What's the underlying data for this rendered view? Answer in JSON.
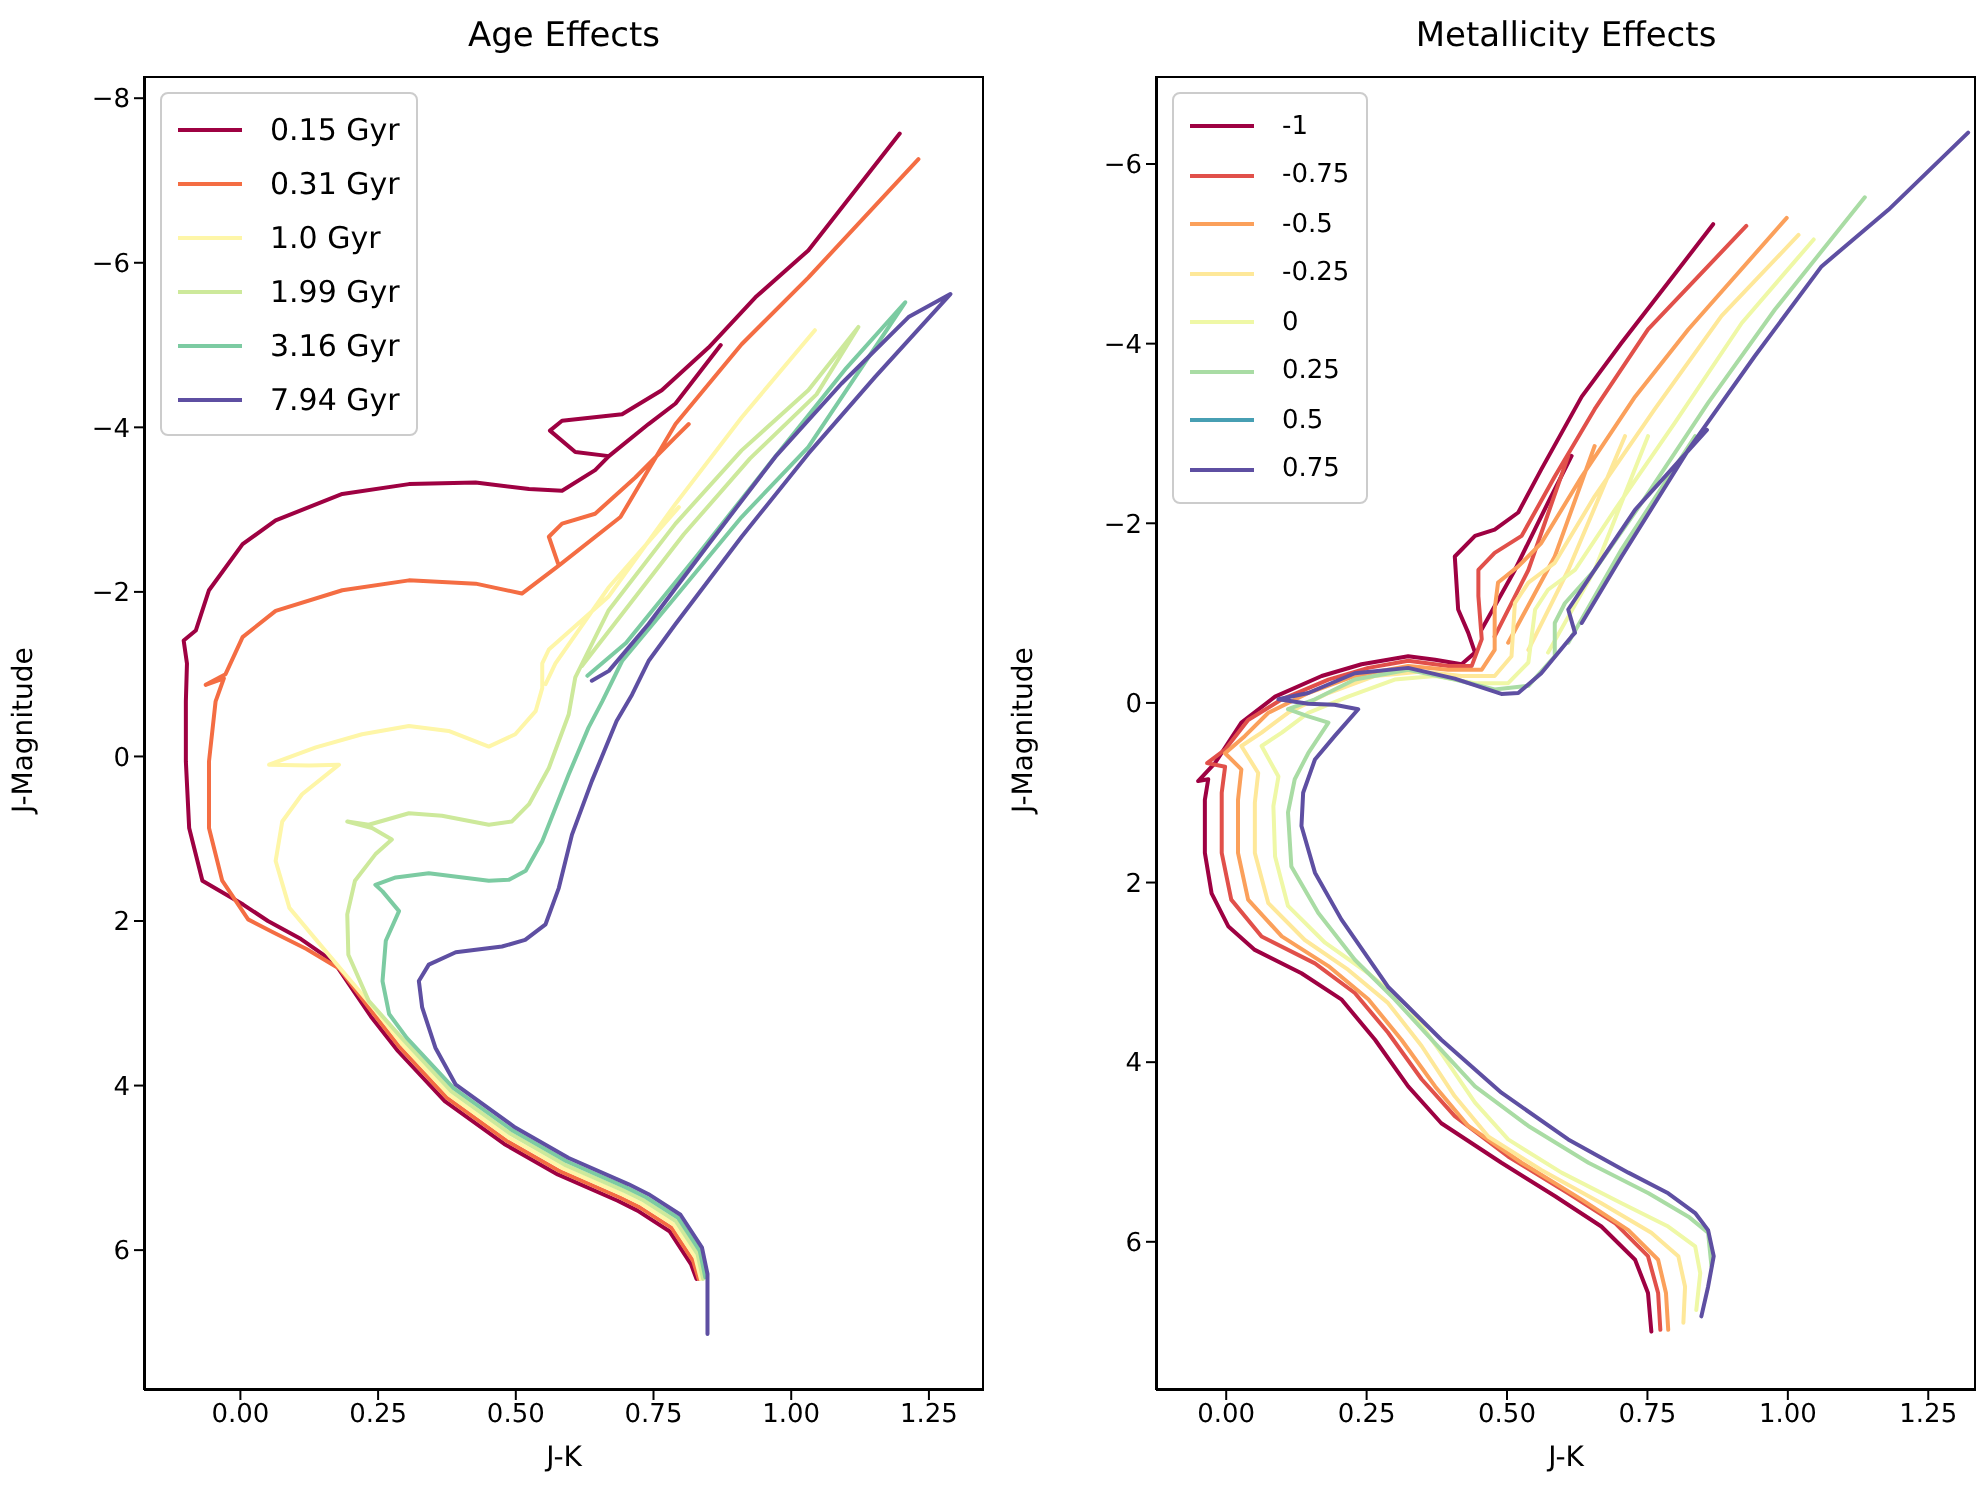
{
  "chart_data": [
    {
      "type": "line",
      "title": "Age Effects",
      "xlabel": "J-K",
      "ylabel": "J-Magnitude",
      "legend": "top left",
      "xlim": [
        -0.175,
        1.35
      ],
      "ylim": [
        7.7,
        -8.27
      ],
      "xticks": [
        {
          "value": 0,
          "label": "0.00"
        },
        {
          "value": 0.25,
          "label": "0.25"
        },
        {
          "value": 0.5,
          "label": "0.50"
        },
        {
          "value": 0.75,
          "label": "0.75"
        },
        {
          "value": 1,
          "label": "1.00"
        },
        {
          "value": 1.25,
          "label": "1.25"
        }
      ],
      "yticks": [
        {
          "value": -8,
          "label": "−8"
        },
        {
          "value": -6,
          "label": "−6"
        },
        {
          "value": -4,
          "label": "−4"
        },
        {
          "value": -2,
          "label": "−2"
        },
        0,
        2,
        4,
        6
      ],
      "series": [
        {
          "name": "0.15 Gyr",
          "color": "#9e0142",
          "x": [
            0.828,
            0.818,
            0.779,
            0.721,
            0.685,
            0.576,
            0.479,
            0.371,
            0.286,
            0.238,
            0.17,
            0.11,
            0.05,
            0.005,
            -0.069,
            -0.093,
            -0.099,
            -0.099,
            -0.097,
            -0.103,
            -0.081,
            -0.057,
            0.004,
            0.064,
            0.185,
            0.306,
            0.427,
            0.524,
            0.584,
            0.644,
            0.669,
            0.608,
            0.562,
            0.584,
            0.693,
            0.765,
            0.85,
            0.935,
            1.031,
            1.197,
            null,
            0.669,
            0.741,
            0.79,
            0.872
          ],
          "values": [
            6.35,
            6.17,
            5.77,
            5.52,
            5.4,
            5.08,
            4.71,
            4.19,
            3.58,
            3.17,
            2.5,
            2.22,
            2.0,
            1.8,
            1.51,
            0.87,
            0.06,
            -0.67,
            -1.13,
            -1.41,
            -1.53,
            -2.02,
            -2.58,
            -2.87,
            -3.19,
            -3.31,
            -3.33,
            -3.25,
            -3.23,
            -3.48,
            -3.65,
            -3.7,
            -3.96,
            -4.08,
            -4.16,
            -4.45,
            -4.97,
            -5.58,
            -6.15,
            -7.57,
            null,
            -3.65,
            -4.04,
            -4.29,
            -5.0
          ]
        },
        {
          "name": "0.31 Gyr",
          "color": "#f46d43",
          "x": [
            0.832,
            0.822,
            0.783,
            0.725,
            0.689,
            0.58,
            0.483,
            0.375,
            0.29,
            0.242,
            0.18,
            0.12,
            0.06,
            0.014,
            -0.033,
            -0.057,
            -0.057,
            -0.045,
            -0.03,
            -0.063,
            -0.027,
            0.004,
            0.064,
            0.185,
            0.306,
            0.427,
            0.511,
            0.578,
            0.69,
            0.79,
            0.91,
            1.031,
            1.231,
            null,
            0.578,
            0.56,
            0.584,
            0.644,
            0.717,
            0.79,
            0.814
          ],
          "values": [
            6.35,
            6.13,
            5.73,
            5.48,
            5.36,
            5.04,
            4.67,
            4.15,
            3.54,
            3.13,
            2.58,
            2.34,
            2.14,
            1.98,
            1.51,
            0.87,
            0.06,
            -0.67,
            -0.95,
            -0.87,
            -1.0,
            -1.45,
            -1.77,
            -2.02,
            -2.14,
            -2.1,
            -1.98,
            -2.32,
            -2.91,
            -4.04,
            -5.01,
            -5.82,
            -7.26,
            null,
            -2.32,
            -2.67,
            -2.83,
            -2.95,
            -3.39,
            -3.88,
            -4.04
          ]
        },
        {
          "name": "1.0 Gyr",
          "color": "#fef6a8",
          "x": [
            0.836,
            0.826,
            0.787,
            0.729,
            0.693,
            0.584,
            0.487,
            0.379,
            0.294,
            0.246,
            0.221,
            0.149,
            0.089,
            0.064,
            0.076,
            0.112,
            0.179,
            0.125,
            0.052,
            0.137,
            0.221,
            0.306,
            0.378,
            0.451,
            0.499,
            0.536,
            0.548,
            0.548,
            0.56,
            0.668,
            0.79,
            0.91,
            1.043,
            null,
            0.796,
            0.668,
            0.572,
            0.554
          ],
          "values": [
            6.35,
            6.09,
            5.69,
            5.44,
            5.32,
            5.0,
            4.63,
            4.11,
            3.5,
            3.09,
            2.89,
            2.32,
            1.84,
            1.27,
            0.79,
            0.46,
            0.1,
            0.11,
            0.1,
            -0.11,
            -0.27,
            -0.37,
            -0.31,
            -0.12,
            -0.27,
            -0.55,
            -0.83,
            -1.13,
            -1.3,
            -1.94,
            -3.07,
            -4.12,
            -5.18,
            null,
            -3.03,
            -2.05,
            -1.13,
            -0.88
          ]
        },
        {
          "name": "1.99 Gyr",
          "color": "#cde99b",
          "x": [
            0.84,
            0.83,
            0.791,
            0.733,
            0.697,
            0.588,
            0.491,
            0.383,
            0.298,
            0.233,
            0.196,
            0.194,
            0.208,
            0.245,
            0.275,
            0.239,
            0.194,
            0.233,
            0.306,
            0.366,
            0.451,
            0.493,
            0.524,
            0.56,
            0.596,
            0.608,
            0.668,
            0.79,
            0.91,
            1.031,
            1.122,
            1.046,
            0.925,
            0.805,
            0.68,
            0.62
          ],
          "values": [
            6.35,
            6.05,
            5.65,
            5.4,
            5.28,
            4.96,
            4.59,
            4.07,
            3.46,
            2.97,
            2.41,
            1.92,
            1.51,
            1.19,
            1.01,
            0.87,
            0.79,
            0.83,
            0.69,
            0.72,
            0.83,
            0.79,
            0.58,
            0.14,
            -0.51,
            -0.96,
            -1.77,
            -2.83,
            -3.72,
            -4.45,
            -5.22,
            -4.4,
            -3.62,
            -2.7,
            -1.62,
            -1.1
          ]
        },
        {
          "name": "3.16 Gyr",
          "color": "#7ccba2",
          "x": [
            0.844,
            0.834,
            0.795,
            0.737,
            0.701,
            0.592,
            0.495,
            0.387,
            0.302,
            0.27,
            0.258,
            0.264,
            0.288,
            0.258,
            0.245,
            0.282,
            0.342,
            0.451,
            0.487,
            0.518,
            0.548,
            0.596,
            0.632,
            0.657,
            0.693,
            0.79,
            0.91,
            1.031,
            1.207,
            1.1,
            0.96,
            0.83,
            0.7,
            0.63
          ],
          "values": [
            6.33,
            6.01,
            5.61,
            5.36,
            5.24,
            4.92,
            4.55,
            4.03,
            3.42,
            3.13,
            2.73,
            2.24,
            1.88,
            1.64,
            1.56,
            1.47,
            1.42,
            1.51,
            1.5,
            1.39,
            1.03,
            0.22,
            -0.35,
            -0.67,
            -1.16,
            -1.94,
            -2.91,
            -3.76,
            -5.52,
            -4.72,
            -3.55,
            -2.45,
            -1.38,
            -0.98
          ]
        },
        {
          "name": "7.94 Gyr",
          "color": "#5e4fa2",
          "x": [
            0.848,
            0.848,
            0.838,
            0.799,
            0.741,
            0.705,
            0.596,
            0.499,
            0.391,
            0.354,
            0.33,
            0.324,
            0.342,
            0.391,
            0.475,
            0.517,
            0.554,
            0.578,
            0.602,
            0.638,
            0.683,
            0.711,
            0.741,
            0.79,
            0.91,
            1.031,
            1.152,
            1.289,
            1.213,
            1.091,
            0.971,
            0.85,
            0.741,
            0.669,
            0.638
          ],
          "values": [
            7.02,
            6.29,
            5.97,
            5.57,
            5.32,
            5.2,
            4.88,
            4.51,
            3.99,
            3.54,
            3.05,
            2.73,
            2.53,
            2.38,
            2.31,
            2.23,
            2.04,
            1.6,
            0.95,
            0.3,
            -0.43,
            -0.75,
            -1.16,
            -1.61,
            -2.67,
            -3.68,
            -4.61,
            -5.62,
            -5.34,
            -4.53,
            -3.64,
            -2.58,
            -1.61,
            -1.04,
            -0.92
          ]
        }
      ]
    },
    {
      "type": "line",
      "title": "Metallicity Effects",
      "xlabel": "J-K",
      "ylabel": "J-Magnitude",
      "legend": "top left",
      "xlim": [
        -0.125,
        1.335
      ],
      "ylim": [
        7.65,
        -6.98
      ],
      "xticks": [
        {
          "value": 0,
          "label": "0.00"
        },
        {
          "value": 0.25,
          "label": "0.25"
        },
        {
          "value": 0.5,
          "label": "0.50"
        },
        {
          "value": 0.75,
          "label": "0.75"
        },
        {
          "value": 1,
          "label": "1.00"
        },
        {
          "value": 1.25,
          "label": "1.25"
        }
      ],
      "yticks": [
        {
          "value": -6,
          "label": "−6"
        },
        {
          "value": -4,
          "label": "−4"
        },
        {
          "value": -2,
          "label": "−2"
        },
        0,
        2,
        4,
        6
      ],
      "series": [
        {
          "name": "-1",
          "color": "#9e0142",
          "x": [
            0.757,
            0.751,
            0.728,
            0.668,
            0.585,
            0.49,
            0.383,
            0.324,
            0.265,
            0.205,
            0.134,
            0.051,
            0.004,
            -0.026,
            -0.038,
            -0.038,
            -0.032,
            -0.05,
            -0.02,
            0.027,
            0.087,
            0.17,
            0.241,
            0.324,
            0.372,
            0.419,
            0.443,
            0.431,
            0.413,
            0.407,
            0.443,
            0.478,
            0.52,
            0.561,
            0.633,
            0.704,
            0.787,
            0.867,
            null,
            0.455,
            0.514,
            0.573,
            0.615
          ],
          "values": [
            7.0,
            6.57,
            6.2,
            5.83,
            5.49,
            5.12,
            4.68,
            4.27,
            3.75,
            3.3,
            3.01,
            2.75,
            2.49,
            2.12,
            1.67,
            1.08,
            0.85,
            0.87,
            0.67,
            0.22,
            -0.07,
            -0.3,
            -0.43,
            -0.52,
            -0.48,
            -0.43,
            -0.56,
            -0.78,
            -1.04,
            -1.63,
            -1.86,
            -1.93,
            -2.12,
            -2.6,
            -3.41,
            -4.01,
            -4.68,
            -5.33,
            null,
            -0.82,
            -1.48,
            -2.23,
            -2.75
          ]
        },
        {
          "name": "-0.75",
          "color": "#e1504a",
          "x": [
            0.773,
            0.769,
            0.751,
            0.692,
            0.609,
            0.502,
            0.407,
            0.348,
            0.288,
            0.229,
            0.158,
            0.063,
            0.009,
            -0.008,
            -0.008,
            -0.002,
            -0.034,
            -0.002,
            0.039,
            0.099,
            0.182,
            0.253,
            0.324,
            0.395,
            0.437,
            0.455,
            0.449,
            0.449,
            0.478,
            0.526,
            0.585,
            0.656,
            0.751,
            0.926,
            null,
            0.478,
            0.538,
            0.609
          ],
          "values": [
            6.98,
            6.57,
            6.16,
            5.79,
            5.46,
            5.05,
            4.6,
            4.19,
            3.67,
            3.23,
            2.9,
            2.6,
            2.19,
            1.67,
            1.0,
            0.71,
            0.67,
            0.52,
            0.19,
            -0.04,
            -0.26,
            -0.39,
            -0.47,
            -0.41,
            -0.41,
            -0.71,
            -1.19,
            -1.48,
            -1.67,
            -1.86,
            -2.52,
            -3.27,
            -4.16,
            -5.31,
            null,
            -0.74,
            -1.48,
            -2.75
          ]
        },
        {
          "name": "-0.5",
          "color": "#fba05b",
          "x": [
            0.787,
            0.783,
            0.769,
            0.716,
            0.633,
            0.526,
            0.431,
            0.372,
            0.312,
            0.253,
            0.182,
            0.099,
            0.039,
            0.021,
            0.021,
            0.027,
            -0.002,
            0.033,
            0.075,
            0.146,
            0.229,
            0.324,
            0.395,
            0.455,
            0.478,
            0.478,
            0.484,
            0.52,
            0.561,
            0.633,
            0.728,
            0.823,
            0.998,
            null,
            0.502,
            0.585,
            0.656
          ],
          "values": [
            6.98,
            6.57,
            6.2,
            5.87,
            5.53,
            5.12,
            4.71,
            4.27,
            3.75,
            3.3,
            2.93,
            2.6,
            2.19,
            1.67,
            1.08,
            0.74,
            0.56,
            0.37,
            0.11,
            -0.11,
            -0.3,
            -0.41,
            -0.37,
            -0.37,
            -0.59,
            -1.04,
            -1.34,
            -1.52,
            -1.78,
            -2.52,
            -3.41,
            -4.16,
            -5.4,
            null,
            -0.67,
            -1.63,
            -2.86
          ]
        },
        {
          "name": "-0.25",
          "color": "#fee899",
          "x": [
            0.814,
            0.817,
            0.805,
            0.757,
            0.668,
            0.561,
            0.467,
            0.407,
            0.348,
            0.288,
            0.217,
            0.14,
            0.075,
            0.051,
            0.051,
            0.057,
            0.027,
            0.063,
            0.11,
            0.182,
            0.265,
            0.348,
            0.419,
            0.478,
            0.508,
            0.514,
            0.538,
            0.585,
            0.656,
            0.763,
            0.882,
            1.019,
            null,
            0.538,
            0.609,
            0.71
          ],
          "values": [
            6.9,
            6.5,
            6.16,
            5.9,
            5.57,
            5.2,
            4.83,
            4.38,
            3.82,
            3.34,
            2.97,
            2.64,
            2.23,
            1.67,
            1.11,
            0.78,
            0.48,
            0.33,
            0.11,
            -0.11,
            -0.3,
            -0.35,
            -0.3,
            -0.3,
            -0.52,
            -1.11,
            -1.34,
            -1.56,
            -2.3,
            -3.27,
            -4.31,
            -5.21,
            null,
            -0.59,
            -1.48,
            -2.97
          ]
        },
        {
          "name": "0",
          "color": "#eff8a6",
          "x": [
            0.837,
            0.844,
            0.835,
            0.787,
            0.704,
            0.597,
            0.502,
            0.443,
            0.383,
            0.324,
            0.253,
            0.176,
            0.11,
            0.087,
            0.084,
            0.093,
            0.063,
            0.099,
            0.146,
            0.217,
            0.3,
            0.372,
            0.443,
            0.502,
            0.538,
            0.55,
            0.573,
            0.621,
            0.692,
            0.799,
            0.918,
            1.046,
            null,
            0.573,
            0.656,
            0.751
          ],
          "values": [
            6.76,
            6.35,
            6.05,
            5.83,
            5.57,
            5.23,
            4.86,
            4.45,
            3.9,
            3.38,
            3.01,
            2.67,
            2.26,
            1.71,
            1.15,
            0.82,
            0.48,
            0.33,
            0.11,
            -0.07,
            -0.26,
            -0.3,
            -0.22,
            -0.22,
            -0.45,
            -1.04,
            -1.26,
            -1.48,
            -2.15,
            -3.12,
            -4.23,
            -5.16,
            null,
            -0.56,
            -1.48,
            -2.97
          ]
        },
        {
          "name": "0.25",
          "color": "#a9dca4",
          "x": [
            0.864,
            0.858,
            0.823,
            0.752,
            0.645,
            0.538,
            0.443,
            0.372,
            0.3,
            0.229,
            0.164,
            0.116,
            0.11,
            0.122,
            0.146,
            0.182,
            0.146,
            0.11,
            0.158,
            0.229,
            0.324,
            0.407,
            0.478,
            0.538,
            0.585,
            0.585,
            0.603,
            0.656,
            0.74,
            0.858,
            0.977,
            1.137,
            null,
            0.609,
            0.704,
            0.835
          ],
          "values": [
            6.27,
            5.9,
            5.72,
            5.46,
            5.12,
            4.71,
            4.27,
            3.79,
            3.3,
            2.86,
            2.34,
            1.82,
            1.22,
            0.85,
            0.56,
            0.22,
            0.15,
            0.07,
            -0.04,
            -0.26,
            -0.37,
            -0.26,
            -0.15,
            -0.19,
            -0.52,
            -0.89,
            -1.11,
            -1.48,
            -2.23,
            -3.34,
            -4.38,
            -5.63,
            null,
            -0.67,
            -1.71,
            -2.97
          ]
        },
        {
          "name": "0.5",
          "color": "#479fb3"
        },
        {
          "name": "0.75",
          "color": "#5e4fa2",
          "x": [
            0.846,
            0.858,
            0.868,
            0.858,
            0.835,
            0.787,
            0.716,
            0.609,
            0.49,
            0.383,
            0.288,
            0.205,
            0.158,
            0.134,
            0.137,
            0.158,
            0.193,
            0.235,
            0.193,
            0.146,
            0.093,
            0.146,
            0.229,
            0.324,
            0.407,
            0.49,
            0.52,
            0.561,
            0.615,
            0.621,
            0.609,
            0.656,
            0.728,
            0.856,
            null,
            0.633,
            0.704,
            0.823,
            0.941,
            1.06,
            1.179,
            1.321
          ],
          "values": [
            6.83,
            6.5,
            6.16,
            5.87,
            5.68,
            5.46,
            5.23,
            4.86,
            4.34,
            3.75,
            3.16,
            2.41,
            1.89,
            1.37,
            1.0,
            0.63,
            0.37,
            0.07,
            0.02,
            0.01,
            -0.04,
            -0.11,
            -0.33,
            -0.39,
            -0.27,
            -0.1,
            -0.11,
            -0.33,
            -0.74,
            -0.78,
            -1.04,
            -1.48,
            -2.15,
            -3.04,
            null,
            -0.89,
            -1.63,
            -2.82,
            -3.86,
            -4.86,
            -5.49,
            -6.35
          ]
        }
      ]
    }
  ]
}
